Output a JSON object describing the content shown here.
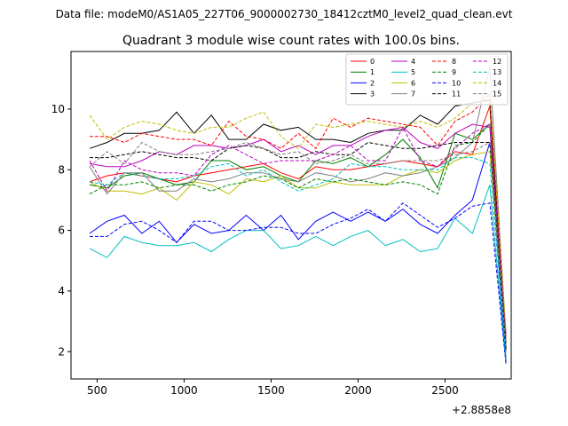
{
  "figure": {
    "suptitle": "Data file: modeM0/AS1A05_227T06_9000002730_18412cztM0_level2_quad_clean.evt"
  },
  "chart_data": {
    "type": "line",
    "title": "Quadrant 3 module wise count rates with 100.0s bins.",
    "xlabel": "",
    "ylabel": "",
    "x_offset_label": "+2.8858e8",
    "xlim": [
      350,
      2880
    ],
    "ylim": [
      1.1,
      11.9
    ],
    "x_ticks": [
      500,
      1000,
      1500,
      2000,
      2500
    ],
    "x_tick_labels": [
      "500",
      "1000",
      "1500",
      "2000",
      "2500"
    ],
    "y_ticks": [
      2,
      4,
      6,
      8,
      10
    ],
    "y_tick_labels": [
      "2",
      "4",
      "6",
      "8",
      "10"
    ],
    "grid": false,
    "legend_position": "top-right",
    "x": [
      457,
      557,
      657,
      757,
      857,
      957,
      1057,
      1157,
      1257,
      1357,
      1457,
      1557,
      1657,
      1757,
      1857,
      1957,
      2057,
      2157,
      2257,
      2357,
      2457,
      2557,
      2657,
      2757,
      2850
    ],
    "series": [
      {
        "name": "0",
        "color": "#ff0000",
        "dash": "solid",
        "values": [
          7.6,
          7.8,
          7.9,
          7.8,
          7.7,
          7.6,
          7.8,
          7.9,
          8.0,
          8.1,
          8.2,
          7.9,
          7.7,
          8.1,
          8.0,
          8.0,
          8.1,
          8.2,
          8.3,
          8.2,
          8.1,
          8.6,
          8.5,
          10.1,
          2.0
        ]
      },
      {
        "name": "1",
        "color": "#008000",
        "dash": "solid",
        "values": [
          7.5,
          7.4,
          7.8,
          7.9,
          7.7,
          7.5,
          7.6,
          8.3,
          8.3,
          8.0,
          8.1,
          7.8,
          7.6,
          8.3,
          8.2,
          8.4,
          8.1,
          8.5,
          9.0,
          8.4,
          7.4,
          9.2,
          9.0,
          9.5,
          2.0
        ]
      },
      {
        "name": "2",
        "color": "#0000ff",
        "dash": "solid",
        "values": [
          5.9,
          6.3,
          6.5,
          5.9,
          6.3,
          5.6,
          6.2,
          5.9,
          6.0,
          6.5,
          6.0,
          6.5,
          5.7,
          6.3,
          6.6,
          6.3,
          6.6,
          6.3,
          6.7,
          6.2,
          5.9,
          6.5,
          7.0,
          8.9,
          1.7
        ]
      },
      {
        "name": "3",
        "color": "#000000",
        "dash": "solid",
        "values": [
          8.7,
          8.9,
          9.2,
          9.2,
          9.3,
          9.9,
          9.2,
          9.8,
          9.0,
          9.0,
          9.5,
          9.3,
          9.4,
          9.0,
          9.0,
          8.9,
          9.2,
          9.3,
          9.3,
          9.8,
          9.5,
          10.1,
          10.2,
          10.3,
          2.1
        ]
      },
      {
        "name": "4",
        "color": "#bf00bf",
        "dash": "solid",
        "values": [
          8.2,
          8.1,
          8.1,
          8.3,
          8.6,
          8.5,
          8.8,
          8.8,
          8.7,
          8.8,
          9.0,
          8.6,
          8.8,
          8.5,
          8.8,
          8.8,
          9.1,
          9.3,
          9.4,
          8.9,
          8.7,
          9.2,
          9.5,
          9.4,
          2.2
        ]
      },
      {
        "name": "5",
        "color": "#00bfbf",
        "dash": "solid",
        "values": [
          5.4,
          5.1,
          5.8,
          5.6,
          5.5,
          5.5,
          5.6,
          5.3,
          5.7,
          6.0,
          6.0,
          5.4,
          5.5,
          5.8,
          5.5,
          5.8,
          6.0,
          5.5,
          5.7,
          5.3,
          5.4,
          6.4,
          5.9,
          7.5,
          1.6
        ]
      },
      {
        "name": "6",
        "color": "#bfbf00",
        "dash": "solid",
        "values": [
          7.6,
          7.3,
          7.3,
          7.2,
          7.4,
          7.0,
          7.6,
          7.5,
          7.2,
          7.7,
          7.6,
          7.8,
          7.4,
          7.4,
          7.6,
          7.5,
          7.5,
          7.5,
          7.8,
          8.0,
          7.9,
          8.3,
          8.5,
          8.6,
          2.3
        ]
      },
      {
        "name": "7",
        "color": "#808080",
        "dash": "solid",
        "values": [
          8.1,
          7.2,
          7.9,
          7.9,
          7.3,
          7.3,
          7.7,
          7.6,
          7.7,
          7.9,
          7.9,
          7.7,
          7.6,
          7.9,
          7.8,
          7.6,
          7.7,
          7.9,
          7.8,
          7.9,
          8.1,
          8.4,
          8.9,
          11.4,
          2.5
        ]
      },
      {
        "name": "8",
        "color": "#ff0000",
        "dash": "dashed",
        "values": [
          9.1,
          9.1,
          8.9,
          9.2,
          9.1,
          9.0,
          9.0,
          8.8,
          9.6,
          9.1,
          9.0,
          8.7,
          9.2,
          8.7,
          9.7,
          9.4,
          9.7,
          9.6,
          9.5,
          9.4,
          8.8,
          9.6,
          9.9,
          10.5,
          2.4
        ]
      },
      {
        "name": "9",
        "color": "#008000",
        "dash": "dashed",
        "values": [
          7.2,
          7.5,
          7.5,
          7.6,
          7.4,
          7.5,
          7.5,
          7.3,
          7.5,
          7.6,
          7.8,
          7.7,
          7.4,
          7.7,
          7.6,
          7.7,
          7.6,
          7.5,
          7.6,
          7.5,
          7.2,
          8.8,
          8.9,
          9.5,
          2.2
        ]
      },
      {
        "name": "10",
        "color": "#0000ff",
        "dash": "dashed",
        "values": [
          5.8,
          5.8,
          6.2,
          6.3,
          6.0,
          5.6,
          6.3,
          6.3,
          6.0,
          6.0,
          6.1,
          6.1,
          5.9,
          5.9,
          6.2,
          6.4,
          6.7,
          6.3,
          6.9,
          6.5,
          6.1,
          6.4,
          6.8,
          6.9,
          1.6
        ]
      },
      {
        "name": "11",
        "color": "#000000",
        "dash": "dashed",
        "values": [
          8.4,
          8.4,
          8.5,
          8.6,
          8.5,
          8.4,
          8.4,
          8.3,
          8.7,
          8.8,
          8.7,
          8.4,
          8.4,
          8.6,
          8.5,
          8.5,
          8.9,
          8.8,
          8.7,
          8.7,
          8.8,
          8.9,
          8.9,
          8.9,
          2.3
        ]
      },
      {
        "name": "12",
        "color": "#bf00bf",
        "dash": "dashed",
        "values": [
          8.3,
          7.3,
          8.3,
          8.0,
          7.9,
          7.9,
          7.8,
          8.5,
          8.8,
          8.5,
          8.2,
          8.3,
          8.3,
          8.3,
          8.5,
          8.8,
          8.3,
          8.3,
          9.4,
          8.3,
          8.1,
          8.7,
          9.2,
          9.5,
          2.6
        ]
      },
      {
        "name": "13",
        "color": "#00bfbf",
        "dash": "dashed",
        "values": [
          7.6,
          7.5,
          7.9,
          7.8,
          7.7,
          7.7,
          7.8,
          8.1,
          8.2,
          7.8,
          8.0,
          7.6,
          7.3,
          7.5,
          7.7,
          8.2,
          8.1,
          8.1,
          8.0,
          8.0,
          8.0,
          8.4,
          8.4,
          8.2,
          1.8
        ]
      },
      {
        "name": "14",
        "color": "#bfbf00",
        "dash": "dashed",
        "values": [
          9.8,
          9.0,
          9.4,
          9.6,
          9.5,
          9.3,
          9.2,
          9.4,
          9.4,
          9.7,
          9.9,
          9.1,
          8.7,
          9.5,
          9.4,
          9.5,
          9.6,
          9.5,
          9.4,
          9.6,
          9.4,
          9.7,
          10.2,
          10.5,
          2.7
        ]
      },
      {
        "name": "15",
        "color": "#808080",
        "dash": "dashed",
        "values": [
          8.1,
          8.6,
          8.2,
          8.9,
          8.6,
          8.5,
          8.5,
          8.6,
          8.7,
          8.9,
          8.7,
          8.5,
          8.6,
          8.2,
          8.3,
          8.5,
          8.2,
          8.2,
          8.3,
          8.3,
          8.3,
          8.5,
          8.6,
          8.9,
          2.2
        ]
      }
    ]
  }
}
